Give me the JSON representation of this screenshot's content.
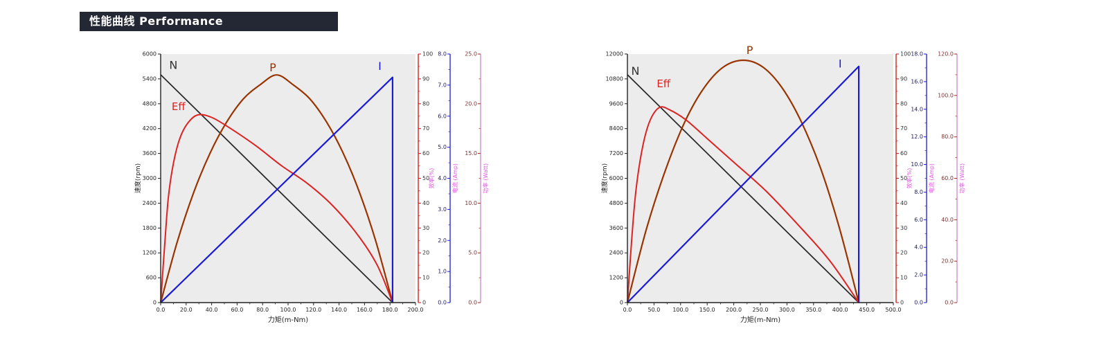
{
  "header": {
    "title": "性能曲线 Performance",
    "bg_color": "#232834",
    "text_color": "#ffffff"
  },
  "colors": {
    "plot_background": "#ececec",
    "speed_curve": "#2b2b2b",
    "power_curve": "#993300",
    "efficiency_curve": "#dd2222",
    "current_curve": "#1a1ad6",
    "axis_title_magenta": "#dd55dd"
  },
  "chart_data": [
    {
      "type": "line",
      "title": "",
      "xlabel": "力矩(m-Nm)",
      "x_ticks": {
        "min": 0,
        "max": 200,
        "step": 20,
        "decimals": 1
      },
      "axes": {
        "speed": {
          "title": "速度(rpm)",
          "min": 0,
          "max": 6000,
          "step": 600,
          "decimals": 0,
          "line": "#222222",
          "tick": "#222222",
          "label": "#222222"
        },
        "eff": {
          "title": "效率(%)",
          "min": 0,
          "max": 100,
          "step": 10,
          "decimals": 0,
          "line": "#cc1111",
          "tick": "#cc1111",
          "label": "#333333"
        },
        "current": {
          "title": "电流 (Amp)",
          "min": 0,
          "max": 8,
          "step": 1,
          "decimals": 1,
          "line": "#1a1ad6",
          "tick": "#1a1ad6",
          "label": "#1a1a66"
        },
        "power": {
          "title": "功率 (Watt)",
          "min": 0,
          "max": 25,
          "step": 5,
          "decimals": 1,
          "line": "#cc88cc",
          "tick": "#aa2222",
          "label": "#7a3333"
        }
      },
      "series": [
        {
          "name": "N",
          "axis": "speed",
          "color": "#2b2b2b",
          "width": 1.8,
          "smooth": false,
          "points": [
            [
              0,
              5500
            ],
            [
              182,
              0
            ]
          ]
        },
        {
          "name": "P",
          "axis": "power",
          "color": "#993300",
          "width": 2.2,
          "smooth": true,
          "points": [
            [
              0,
              0
            ],
            [
              13,
              6.1
            ],
            [
              26,
              11.1
            ],
            [
              39,
              15.1
            ],
            [
              52,
              18.2
            ],
            [
              65,
              20.5
            ],
            [
              78,
              21.9
            ],
            [
              91,
              22.9
            ],
            [
              104,
              21.9
            ],
            [
              117,
              20.5
            ],
            [
              130,
              18.2
            ],
            [
              143,
              15.1
            ],
            [
              156,
              11.1
            ],
            [
              169,
              6.1
            ],
            [
              182,
              0
            ]
          ]
        },
        {
          "name": "Eff",
          "axis": "eff",
          "color": "#dd2222",
          "width": 2.0,
          "smooth": true,
          "points": [
            [
              0,
              0
            ],
            [
              3,
              22
            ],
            [
              6,
              42
            ],
            [
              10,
              56
            ],
            [
              15,
              66
            ],
            [
              21,
              72
            ],
            [
              29,
              75.5
            ],
            [
              40,
              74.5
            ],
            [
              55,
              70
            ],
            [
              75,
              63
            ],
            [
              95,
              55
            ],
            [
              115,
              48
            ],
            [
              135,
              39
            ],
            [
              155,
              27
            ],
            [
              170,
              15
            ],
            [
              182,
              0
            ]
          ]
        },
        {
          "name": "I",
          "axis": "current",
          "color": "#1a1ad6",
          "width": 2.2,
          "smooth": false,
          "points": [
            [
              0,
              0
            ],
            [
              182,
              7.25
            ],
            [
              182,
              0
            ]
          ]
        }
      ],
      "curve_labels": [
        {
          "text": "N",
          "x": 10,
          "v": 5720,
          "axis": "speed",
          "color": "#333333",
          "size": 16
        },
        {
          "text": "Eff",
          "x": 14,
          "v": 4720,
          "axis": "speed",
          "color": "#dd2222",
          "size": 15
        },
        {
          "text": "P",
          "x": 88,
          "v": 5660,
          "axis": "speed",
          "color": "#993300",
          "size": 16
        },
        {
          "text": "I",
          "x": 172,
          "v": 5690,
          "axis": "speed",
          "color": "#1a1ad6",
          "size": 16
        }
      ]
    },
    {
      "type": "line",
      "title": "",
      "xlabel": "力矩(m-Nm)",
      "x_ticks": {
        "min": 0,
        "max": 500,
        "step": 50,
        "decimals": 1
      },
      "axes": {
        "speed": {
          "title": "速度(rpm)",
          "min": 0,
          "max": 12000,
          "step": 1200,
          "decimals": 0,
          "line": "#222222",
          "tick": "#222222",
          "label": "#222222"
        },
        "eff": {
          "title": "效率(%)",
          "min": 0,
          "max": 100,
          "step": 10,
          "decimals": 0,
          "line": "#cc1111",
          "tick": "#cc1111",
          "label": "#333333"
        },
        "current": {
          "title": "电流 (Amp)",
          "min": 0,
          "max": 18,
          "step": 2,
          "decimals": 1,
          "line": "#1a1ad6",
          "tick": "#1a1ad6",
          "label": "#1a1a66"
        },
        "power": {
          "title": "功率 (Watt)",
          "min": 0,
          "max": 120,
          "step": 20,
          "decimals": 1,
          "line": "#cc88cc",
          "tick": "#aa2222",
          "label": "#7a3333"
        }
      },
      "series": [
        {
          "name": "N",
          "axis": "speed",
          "color": "#2b2b2b",
          "width": 1.8,
          "smooth": false,
          "points": [
            [
              0,
              11000
            ],
            [
              435,
              0
            ]
          ]
        },
        {
          "name": "P",
          "axis": "power",
          "color": "#993300",
          "width": 2.2,
          "smooth": true,
          "points": [
            [
              0,
              0
            ],
            [
              36,
              35.7
            ],
            [
              73,
              65
            ],
            [
              109,
              87.8
            ],
            [
              145,
              104
            ],
            [
              181,
              113.8
            ],
            [
              218,
              117
            ],
            [
              254,
              113.8
            ],
            [
              290,
              104
            ],
            [
              326,
              87.8
            ],
            [
              363,
              65
            ],
            [
              399,
              35.7
            ],
            [
              435,
              0
            ]
          ]
        },
        {
          "name": "Eff",
          "axis": "eff",
          "color": "#dd2222",
          "width": 2.0,
          "smooth": true,
          "points": [
            [
              0,
              0
            ],
            [
              8,
              25
            ],
            [
              16,
              45
            ],
            [
              28,
              62
            ],
            [
              42,
              73
            ],
            [
              60,
              78.5
            ],
            [
              80,
              77.5
            ],
            [
              110,
              73.5
            ],
            [
              150,
              66
            ],
            [
              200,
              56.5
            ],
            [
              260,
              45
            ],
            [
              320,
              31.5
            ],
            [
              380,
              17
            ],
            [
              435,
              0
            ]
          ]
        },
        {
          "name": "I",
          "axis": "current",
          "color": "#1a1ad6",
          "width": 2.2,
          "smooth": false,
          "points": [
            [
              0,
              0
            ],
            [
              435,
              17.1
            ],
            [
              435,
              0
            ]
          ]
        }
      ],
      "curve_labels": [
        {
          "text": "N",
          "x": 15,
          "v": 11150,
          "axis": "speed",
          "color": "#333333",
          "size": 16
        },
        {
          "text": "Eff",
          "x": 68,
          "v": 10550,
          "axis": "speed",
          "color": "#dd2222",
          "size": 15
        },
        {
          "text": "P",
          "x": 230,
          "v": 12150,
          "axis": "speed",
          "color": "#993300",
          "size": 16
        },
        {
          "text": "I",
          "x": 400,
          "v": 11500,
          "axis": "speed",
          "color": "#1a1ad6",
          "size": 16
        }
      ]
    }
  ]
}
